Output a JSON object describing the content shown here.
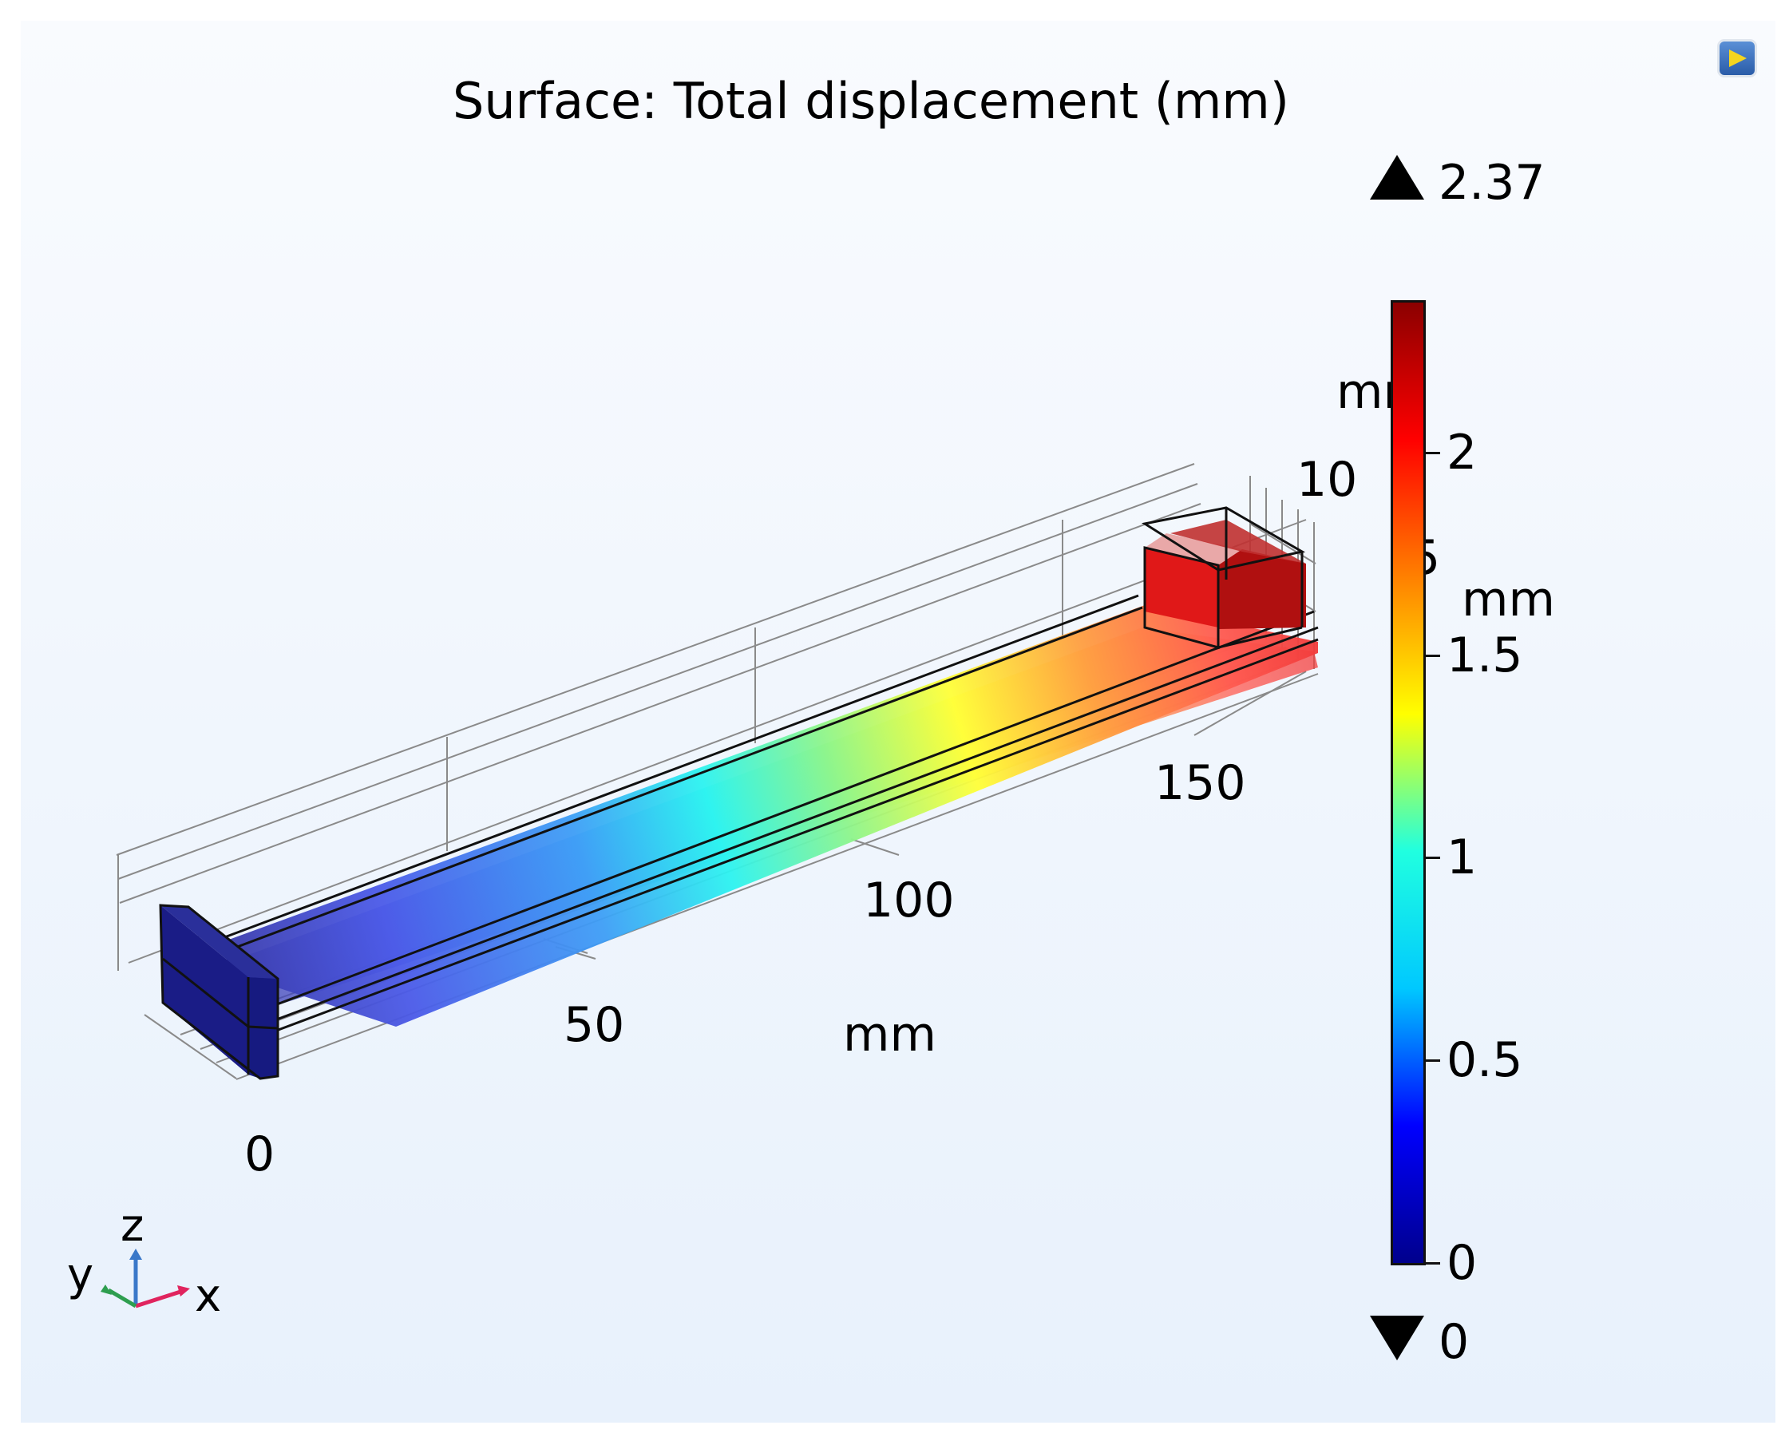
{
  "plot": {
    "title": "Surface: Total displacement (mm)",
    "quantity": "Total displacement",
    "unit": "mm"
  },
  "colorbar": {
    "max_label": "2.37",
    "min_label": "0",
    "max_value": 2.37,
    "min_value": 0,
    "unit_label": "mm",
    "ticks": [
      "2",
      "1.5",
      "1",
      "0.5",
      "0"
    ],
    "tick_values": [
      2,
      1.5,
      1,
      0.5,
      0
    ],
    "colormap": [
      "#00008c",
      "#0000ff",
      "#00c8ff",
      "#20ffe0",
      "#ffff00",
      "#ff8000",
      "#ff0000",
      "#8b0000"
    ],
    "max_arrow_icon": "triangle-up",
    "min_arrow_icon": "triangle-down"
  },
  "axes": {
    "x_ticks": [
      "0",
      "50",
      "100",
      "150"
    ],
    "x_tick_values": [
      0,
      50,
      100,
      150
    ],
    "x_unit": "mm",
    "y_ticks_partial": [
      "10",
      "5"
    ],
    "y_unit": "mm",
    "z_unit": "mm",
    "grid_color": "#808080"
  },
  "triad": {
    "x_label": "x",
    "y_label": "y",
    "z_label": "z",
    "x_color": "#e0245e",
    "y_color": "#2e9e4f",
    "z_color": "#3a78c9"
  },
  "toolbar": {
    "expand_icon": "play-panel-icon"
  }
}
